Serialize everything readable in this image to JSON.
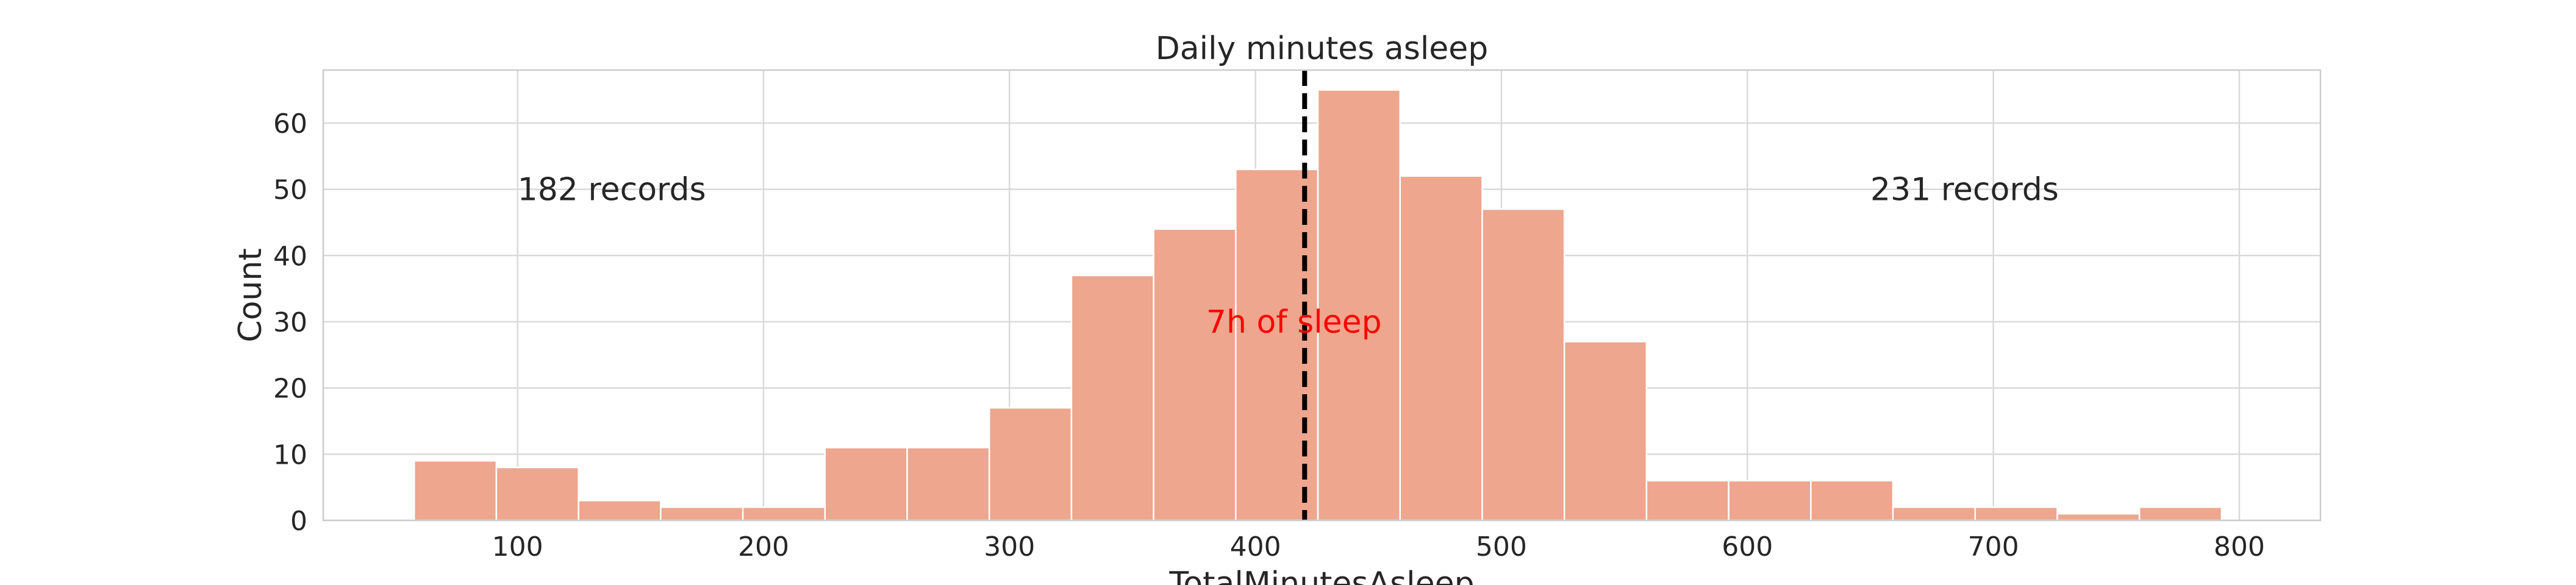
{
  "chart_data": {
    "type": "bar",
    "title": "Daily minutes asleep",
    "xlabel": "TotalMinutesAsleep",
    "ylabel": "Count",
    "xlim": [
      21,
      833
    ],
    "ylim": [
      0,
      68
    ],
    "xticks": [
      100,
      200,
      300,
      400,
      500,
      600,
      700,
      800
    ],
    "yticks": [
      0,
      10,
      20,
      30,
      40,
      50,
      60
    ],
    "grid": true,
    "bar_color": "#eea68e",
    "bin_edges": [
      58,
      91.4,
      124.8,
      158.2,
      191.6,
      225,
      258.4,
      291.8,
      325.2,
      358.6,
      392,
      425.4,
      458.8,
      492.2,
      525.6,
      559,
      592.4,
      625.8,
      659.2,
      692.6,
      726,
      759.4,
      792.8
    ],
    "values": [
      9,
      8,
      3,
      2,
      2,
      11,
      11,
      17,
      37,
      44,
      53,
      65,
      52,
      47,
      27,
      6,
      6,
      6,
      2,
      2,
      1,
      2
    ],
    "reference_line": {
      "x": 420,
      "color": "#000000",
      "style": "dashed"
    },
    "annotations": [
      {
        "text": "182 records",
        "x": 100,
        "y": 50,
        "color": "#262626"
      },
      {
        "text": "231 records",
        "x": 650,
        "y": 50,
        "color": "#262626"
      },
      {
        "text": "7h of sleep",
        "x": 380,
        "y": 30,
        "color": "#ff0000"
      }
    ]
  }
}
